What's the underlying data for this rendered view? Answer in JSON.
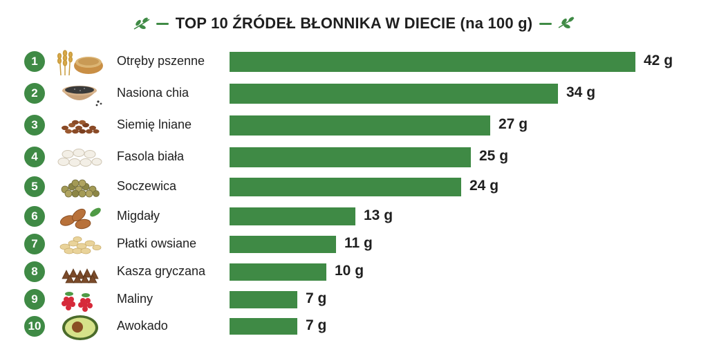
{
  "chart_data": {
    "type": "bar",
    "title": "TOP 10 ŹRÓDEŁ BŁONNIKA W DIECIE (na 100 g)",
    "unit": "g",
    "colors": {
      "bar": "#3f8a45",
      "accent": "#3f8a45"
    },
    "items": [
      {
        "rank": "1",
        "label": "Otręby pszenne",
        "value": 42,
        "value_label": "42 g",
        "icon": "wheat-bran-icon"
      },
      {
        "rank": "2",
        "label": "Nasiona chia",
        "value": 34,
        "value_label": "34 g",
        "icon": "chia-seeds-icon"
      },
      {
        "rank": "3",
        "label": "Siemię lniane",
        "value": 27,
        "value_label": "27 g",
        "icon": "flaxseed-icon"
      },
      {
        "rank": "4",
        "label": "Fasola biała",
        "value": 25,
        "value_label": "25 g",
        "icon": "white-beans-icon"
      },
      {
        "rank": "5",
        "label": "Soczewica",
        "value": 24,
        "value_label": "24 g",
        "icon": "lentils-icon"
      },
      {
        "rank": "6",
        "label": "Migdały",
        "value": 13,
        "value_label": "13 g",
        "icon": "almonds-icon"
      },
      {
        "rank": "7",
        "label": "Płatki owsiane",
        "value": 11,
        "value_label": "11 g",
        "icon": "oat-flakes-icon"
      },
      {
        "rank": "8",
        "label": "Kasza gryczana",
        "value": 10,
        "value_label": "10 g",
        "icon": "buckwheat-icon"
      },
      {
        "rank": "9",
        "label": "Maliny",
        "value": 7,
        "value_label": "7 g",
        "icon": "raspberries-icon"
      },
      {
        "rank": "10",
        "label": "Awokado",
        "value": 7,
        "value_label": "7 g",
        "icon": "avocado-icon"
      }
    ]
  }
}
